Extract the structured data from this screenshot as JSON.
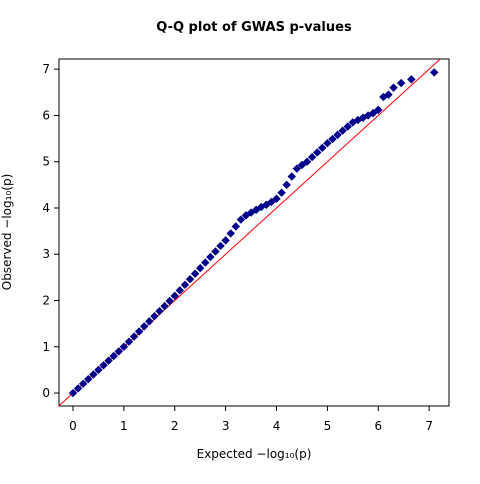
{
  "chart_data": {
    "type": "scatter",
    "title": "Q-Q plot of GWAS p-values",
    "xlabel": "Expected  −log₁₀(p)",
    "ylabel": "Observed  −log₁₀(p)",
    "x": [
      0,
      0.1,
      0.2,
      0.3,
      0.4,
      0.5,
      0.6,
      0.7,
      0.8,
      0.9,
      1.0,
      1.1,
      1.2,
      1.3,
      1.4,
      1.5,
      1.6,
      1.7,
      1.8,
      1.9,
      2.0,
      2.1,
      2.2,
      2.3,
      2.4,
      2.5,
      2.6,
      2.7,
      2.8,
      2.9,
      3.0,
      3.1,
      3.2,
      3.3,
      3.4,
      3.5,
      3.6,
      3.7,
      3.8,
      3.9,
      4.0,
      4.1,
      4.2,
      4.3,
      4.4,
      4.5,
      4.6,
      4.7,
      4.8,
      4.9,
      5.0,
      5.1,
      5.2,
      5.3,
      5.4,
      5.5,
      5.6,
      5.7,
      5.8,
      5.9,
      6.0,
      6.1,
      6.2,
      6.3,
      6.45,
      6.65,
      7.1
    ],
    "values": [
      0,
      0.1,
      0.2,
      0.3,
      0.4,
      0.5,
      0.6,
      0.7,
      0.8,
      0.9,
      1.0,
      1.11,
      1.22,
      1.33,
      1.44,
      1.55,
      1.66,
      1.77,
      1.88,
      1.99,
      2.1,
      2.22,
      2.34,
      2.46,
      2.58,
      2.7,
      2.82,
      2.94,
      3.06,
      3.18,
      3.3,
      3.45,
      3.6,
      3.75,
      3.84,
      3.9,
      3.96,
      4.02,
      4.07,
      4.13,
      4.2,
      4.33,
      4.5,
      4.68,
      4.85,
      4.93,
      5.0,
      5.1,
      5.2,
      5.3,
      5.4,
      5.49,
      5.58,
      5.67,
      5.76,
      5.85,
      5.9,
      5.95,
      6.0,
      6.05,
      6.12,
      6.4,
      6.45,
      6.6,
      6.7,
      6.78,
      6.93
    ],
    "color": "#00008b",
    "diagonal_color": "#ff0000",
    "xlim": [
      -0.275,
      7.39
    ],
    "ylim": [
      -0.28,
      7.22
    ],
    "xticks": [
      0,
      1,
      2,
      3,
      4,
      5,
      6,
      7
    ],
    "yticks": [
      0,
      1,
      2,
      3,
      4,
      5,
      6,
      7
    ]
  }
}
